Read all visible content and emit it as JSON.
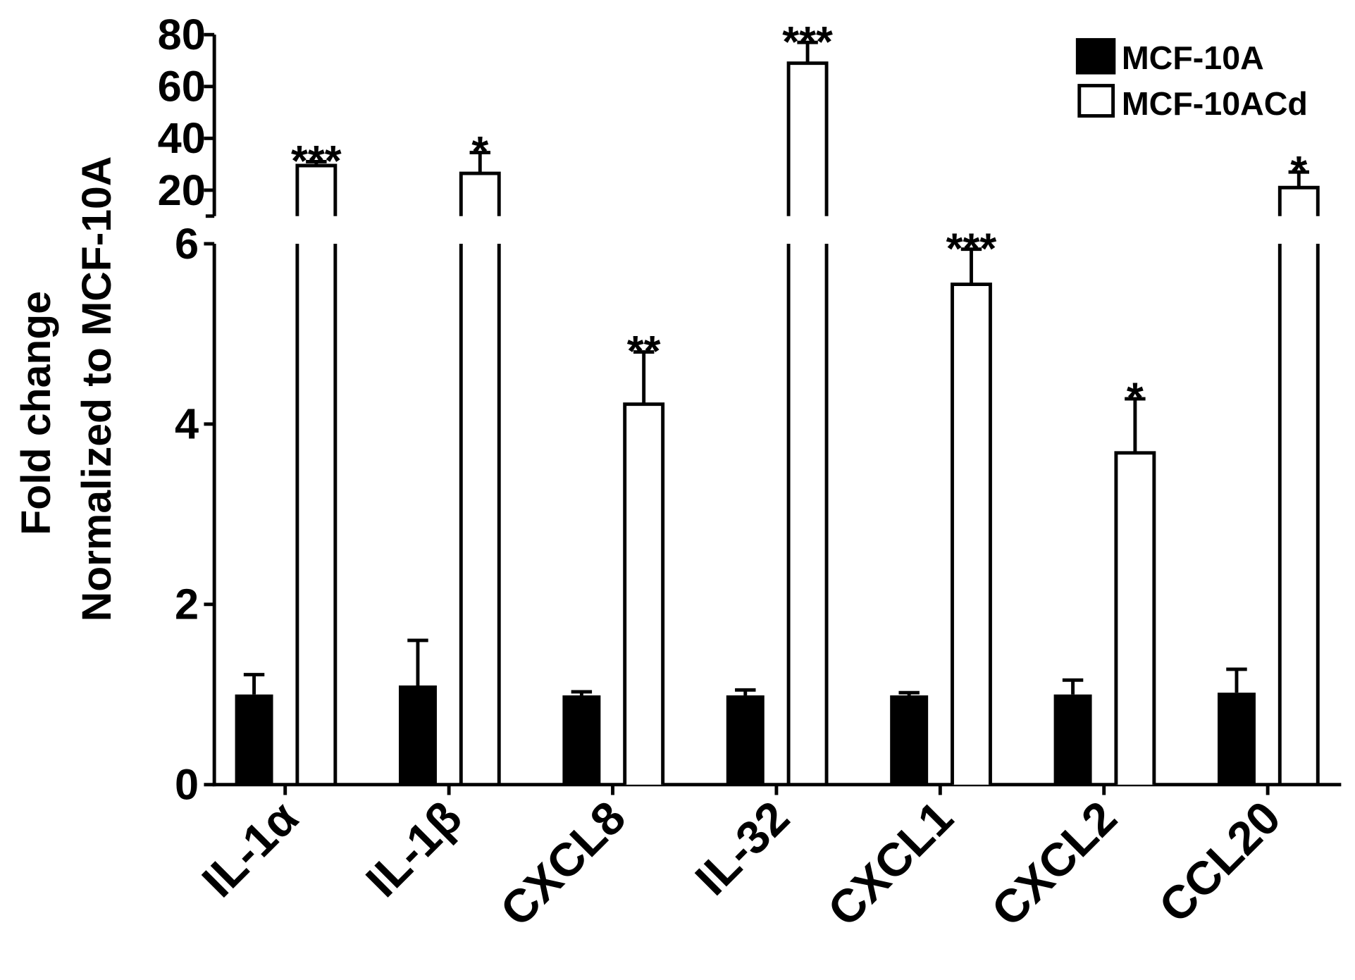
{
  "chart_data": {
    "type": "bar",
    "ylabel_lines": [
      "Fold change",
      "Normalized to MCF-10A"
    ],
    "xlabel": "",
    "categories": [
      "IL-1α",
      "IL-1β",
      "CXCL8",
      "IL-32",
      "CXCL1",
      "CXCL2",
      "CCL20"
    ],
    "y_axis_break": true,
    "lower_ylim": [
      0,
      6
    ],
    "lower_yticks": [
      0,
      2,
      4,
      6
    ],
    "upper_ylim": [
      10,
      80
    ],
    "upper_yticks": [
      20,
      40,
      60,
      80
    ],
    "legend_placement": "top-right",
    "grid": false,
    "series": [
      {
        "name": "MCF-10A",
        "fill": "#000000",
        "values": [
          1.0,
          1.1,
          0.99,
          0.99,
          0.99,
          1.0,
          1.02
        ],
        "error": [
          0.22,
          0.5,
          0.04,
          0.06,
          0.03,
          0.16,
          0.26
        ],
        "significance": [
          "",
          "",
          "",
          "",
          "",
          "",
          ""
        ]
      },
      {
        "name": "MCF-10ACd",
        "fill": "#ffffff",
        "values": [
          29.5,
          26.5,
          4.22,
          69,
          5.55,
          3.68,
          21
        ],
        "error": [
          1.5,
          8,
          0.58,
          8,
          0.39,
          0.6,
          6
        ],
        "significance": [
          "***",
          "*",
          "**",
          "***",
          "***",
          "*",
          "*"
        ]
      }
    ]
  }
}
